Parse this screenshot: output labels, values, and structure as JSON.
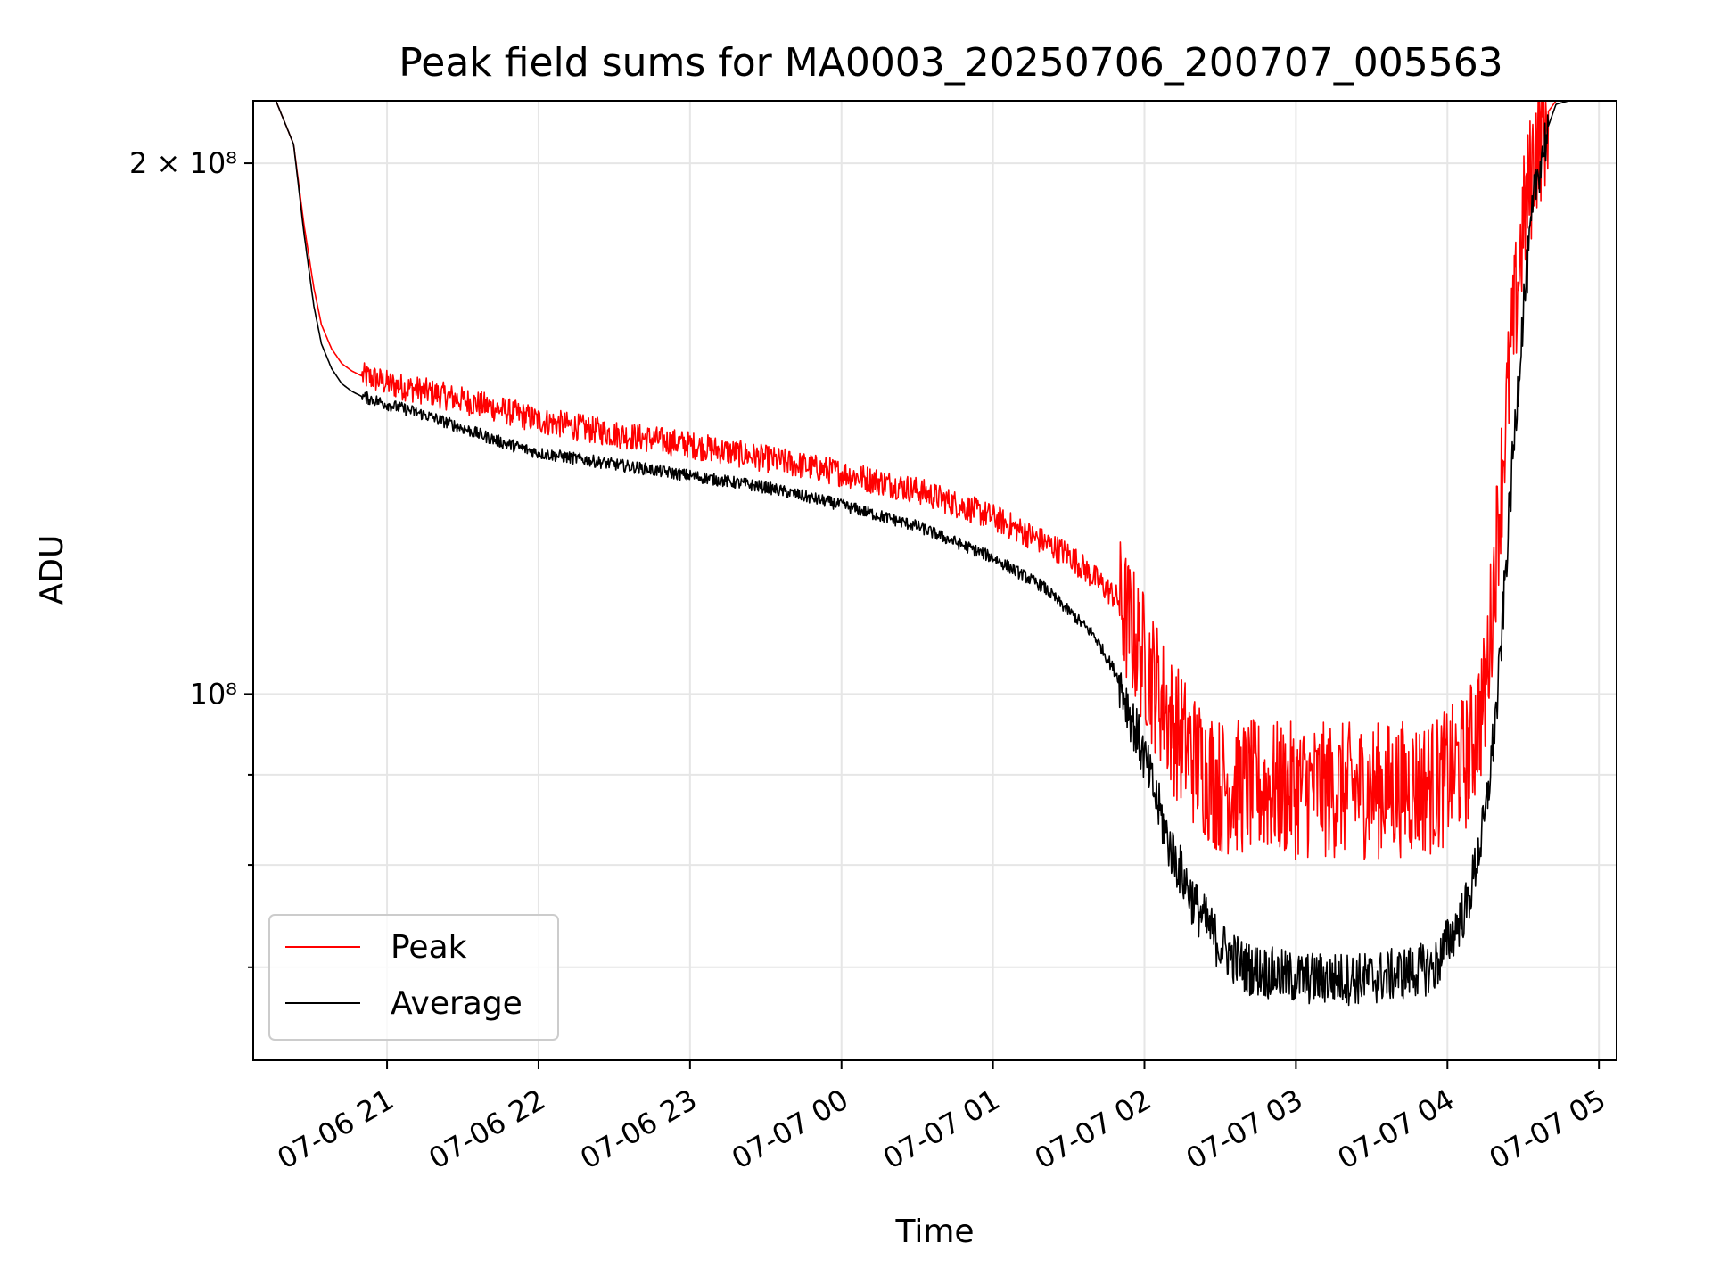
{
  "chart_data": {
    "type": "line",
    "title": "Peak field sums for MA0003_20250706_200707_005563",
    "xlabel": "Time",
    "ylabel": "ADU",
    "yscale": "log",
    "x_unit": "hours",
    "xlim": [
      "2025-07-06 20:07",
      "2025-07-07 05:07"
    ],
    "ylim": [
      62000000,
      217000000
    ],
    "x_ticks": [
      {
        "label": "07-06 21",
        "time": "2025-07-06 21:00"
      },
      {
        "label": "07-06 22",
        "time": "2025-07-06 22:00"
      },
      {
        "label": "07-06 23",
        "time": "2025-07-06 23:00"
      },
      {
        "label": "07-07 00",
        "time": "2025-07-07 00:00"
      },
      {
        "label": "07-07 01",
        "time": "2025-07-07 01:00"
      },
      {
        "label": "07-07 02",
        "time": "2025-07-07 02:00"
      },
      {
        "label": "07-07 03",
        "time": "2025-07-07 03:00"
      },
      {
        "label": "07-07 04",
        "time": "2025-07-07 04:00"
      },
      {
        "label": "07-07 05",
        "time": "2025-07-07 05:00"
      }
    ],
    "y_ticks_major": [
      {
        "label": "2 × 10⁸",
        "value": 200000000
      },
      {
        "label": "10⁸",
        "value": 100000000
      }
    ],
    "y_ticks_minor": [
      70000000,
      80000000,
      90000000
    ],
    "grid": true,
    "legend_position": "lower-left",
    "series": [
      {
        "name": "Peak",
        "color": "#ff0000",
        "x": [
          "2025-07-06 20:07",
          "2025-07-06 20:16",
          "2025-07-06 20:23",
          "2025-07-06 20:27",
          "2025-07-06 20:31",
          "2025-07-06 20:34",
          "2025-07-06 20:38",
          "2025-07-06 20:42",
          "2025-07-06 20:46",
          "2025-07-06 20:50",
          "2025-07-06 20:55",
          "2025-07-06 21:00",
          "2025-07-06 21:15",
          "2025-07-06 21:30",
          "2025-07-06 21:45",
          "2025-07-06 22:00",
          "2025-07-06 22:30",
          "2025-07-06 23:00",
          "2025-07-06 23:30",
          "2025-07-07 00:00",
          "2025-07-07 00:30",
          "2025-07-07 01:00",
          "2025-07-07 01:30",
          "2025-07-07 01:50",
          "2025-07-07 02:00",
          "2025-07-07 02:10",
          "2025-07-07 02:20",
          "2025-07-07 02:30",
          "2025-07-07 03:00",
          "2025-07-07 03:30",
          "2025-07-07 03:55",
          "2025-07-07 04:08",
          "2025-07-07 04:15",
          "2025-07-07 04:20",
          "2025-07-07 04:25",
          "2025-07-07 04:30",
          "2025-07-07 04:35",
          "2025-07-07 04:40",
          "2025-07-07 04:43",
          "2025-07-07 04:48",
          "2025-07-07 05:07"
        ],
        "values": [
          217000000,
          217000000,
          205000000,
          185000000,
          170000000,
          162000000,
          157000000,
          154000000,
          152500000,
          151500000,
          151000000,
          150000000,
          148500000,
          146800000,
          145000000,
          143000000,
          140500000,
          138500000,
          136000000,
          133500000,
          130500000,
          126000000,
          120000000,
          113000000,
          105000000,
          97000000,
          92000000,
          89000000,
          88500000,
          88500000,
          89000000,
          92000000,
          100000000,
          125000000,
          155000000,
          185000000,
          205000000,
          214000000,
          217000000,
          217000000,
          217000000
        ]
      },
      {
        "name": "Average",
        "color": "#000000",
        "x": [
          "2025-07-06 20:07",
          "2025-07-06 20:16",
          "2025-07-06 20:23",
          "2025-07-06 20:27",
          "2025-07-06 20:31",
          "2025-07-06 20:34",
          "2025-07-06 20:38",
          "2025-07-06 20:42",
          "2025-07-06 20:46",
          "2025-07-06 20:50",
          "2025-07-06 20:55",
          "2025-07-06 21:00",
          "2025-07-06 21:15",
          "2025-07-06 21:30",
          "2025-07-06 21:45",
          "2025-07-06 22:00",
          "2025-07-06 22:30",
          "2025-07-06 23:00",
          "2025-07-06 23:30",
          "2025-07-07 00:00",
          "2025-07-07 00:30",
          "2025-07-07 01:00",
          "2025-07-07 01:20",
          "2025-07-07 01:40",
          "2025-07-07 01:50",
          "2025-07-07 02:00",
          "2025-07-07 02:10",
          "2025-07-07 02:20",
          "2025-07-07 02:30",
          "2025-07-07 02:40",
          "2025-07-07 03:00",
          "2025-07-07 03:30",
          "2025-07-07 03:55",
          "2025-07-07 04:08",
          "2025-07-07 04:15",
          "2025-07-07 04:20",
          "2025-07-07 04:25",
          "2025-07-07 04:30",
          "2025-07-07 04:35",
          "2025-07-07 04:40",
          "2025-07-07 04:43",
          "2025-07-07 04:48",
          "2025-07-07 05:07"
        ],
        "values": [
          217000000,
          217000000,
          205000000,
          183000000,
          166000000,
          158000000,
          153000000,
          150000000,
          148500000,
          147500000,
          146800000,
          146000000,
          144000000,
          141500000,
          139000000,
          137000000,
          135000000,
          133000000,
          131000000,
          128000000,
          124500000,
          119500000,
          115000000,
          108000000,
          102000000,
          92000000,
          82000000,
          76000000,
          72000000,
          70000000,
          69000000,
          69000000,
          70000000,
          76000000,
          85000000,
          100000000,
          130000000,
          165000000,
          195000000,
          210000000,
          216000000,
          217000000,
          217000000
        ]
      }
    ]
  },
  "legend": {
    "items": [
      {
        "label": "Peak",
        "color": "#ff0000"
      },
      {
        "label": "Average",
        "color": "#000000"
      }
    ]
  }
}
